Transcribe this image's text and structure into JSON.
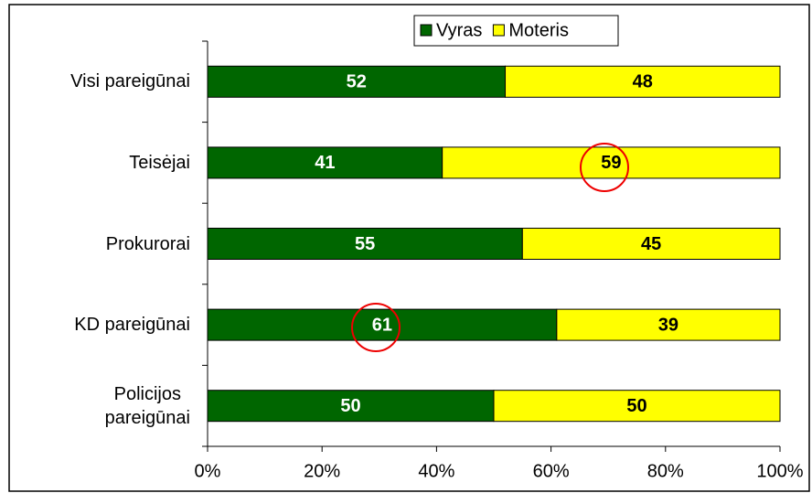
{
  "chart_data": {
    "type": "stacked-bar-horizontal",
    "categories": [
      "Visi pareigūnai",
      "Teisėjai",
      "Prokurorai",
      "KD pareigūnai",
      "Policijos\npareigūnai"
    ],
    "series": [
      {
        "name": "Vyras",
        "color": "#006600",
        "values": [
          52,
          41,
          55,
          61,
          50
        ]
      },
      {
        "name": "Moteris",
        "color": "#ffff00",
        "values": [
          48,
          59,
          45,
          39,
          50
        ]
      }
    ],
    "xlim": [
      0,
      100
    ],
    "xticks": [
      {
        "value": 0,
        "label": "0%"
      },
      {
        "value": 20,
        "label": "20%"
      },
      {
        "value": 40,
        "label": "40%"
      },
      {
        "value": 60,
        "label": "60%"
      },
      {
        "value": 80,
        "label": "80%"
      },
      {
        "value": 100,
        "label": "100%"
      }
    ],
    "legend": "top"
  }
}
